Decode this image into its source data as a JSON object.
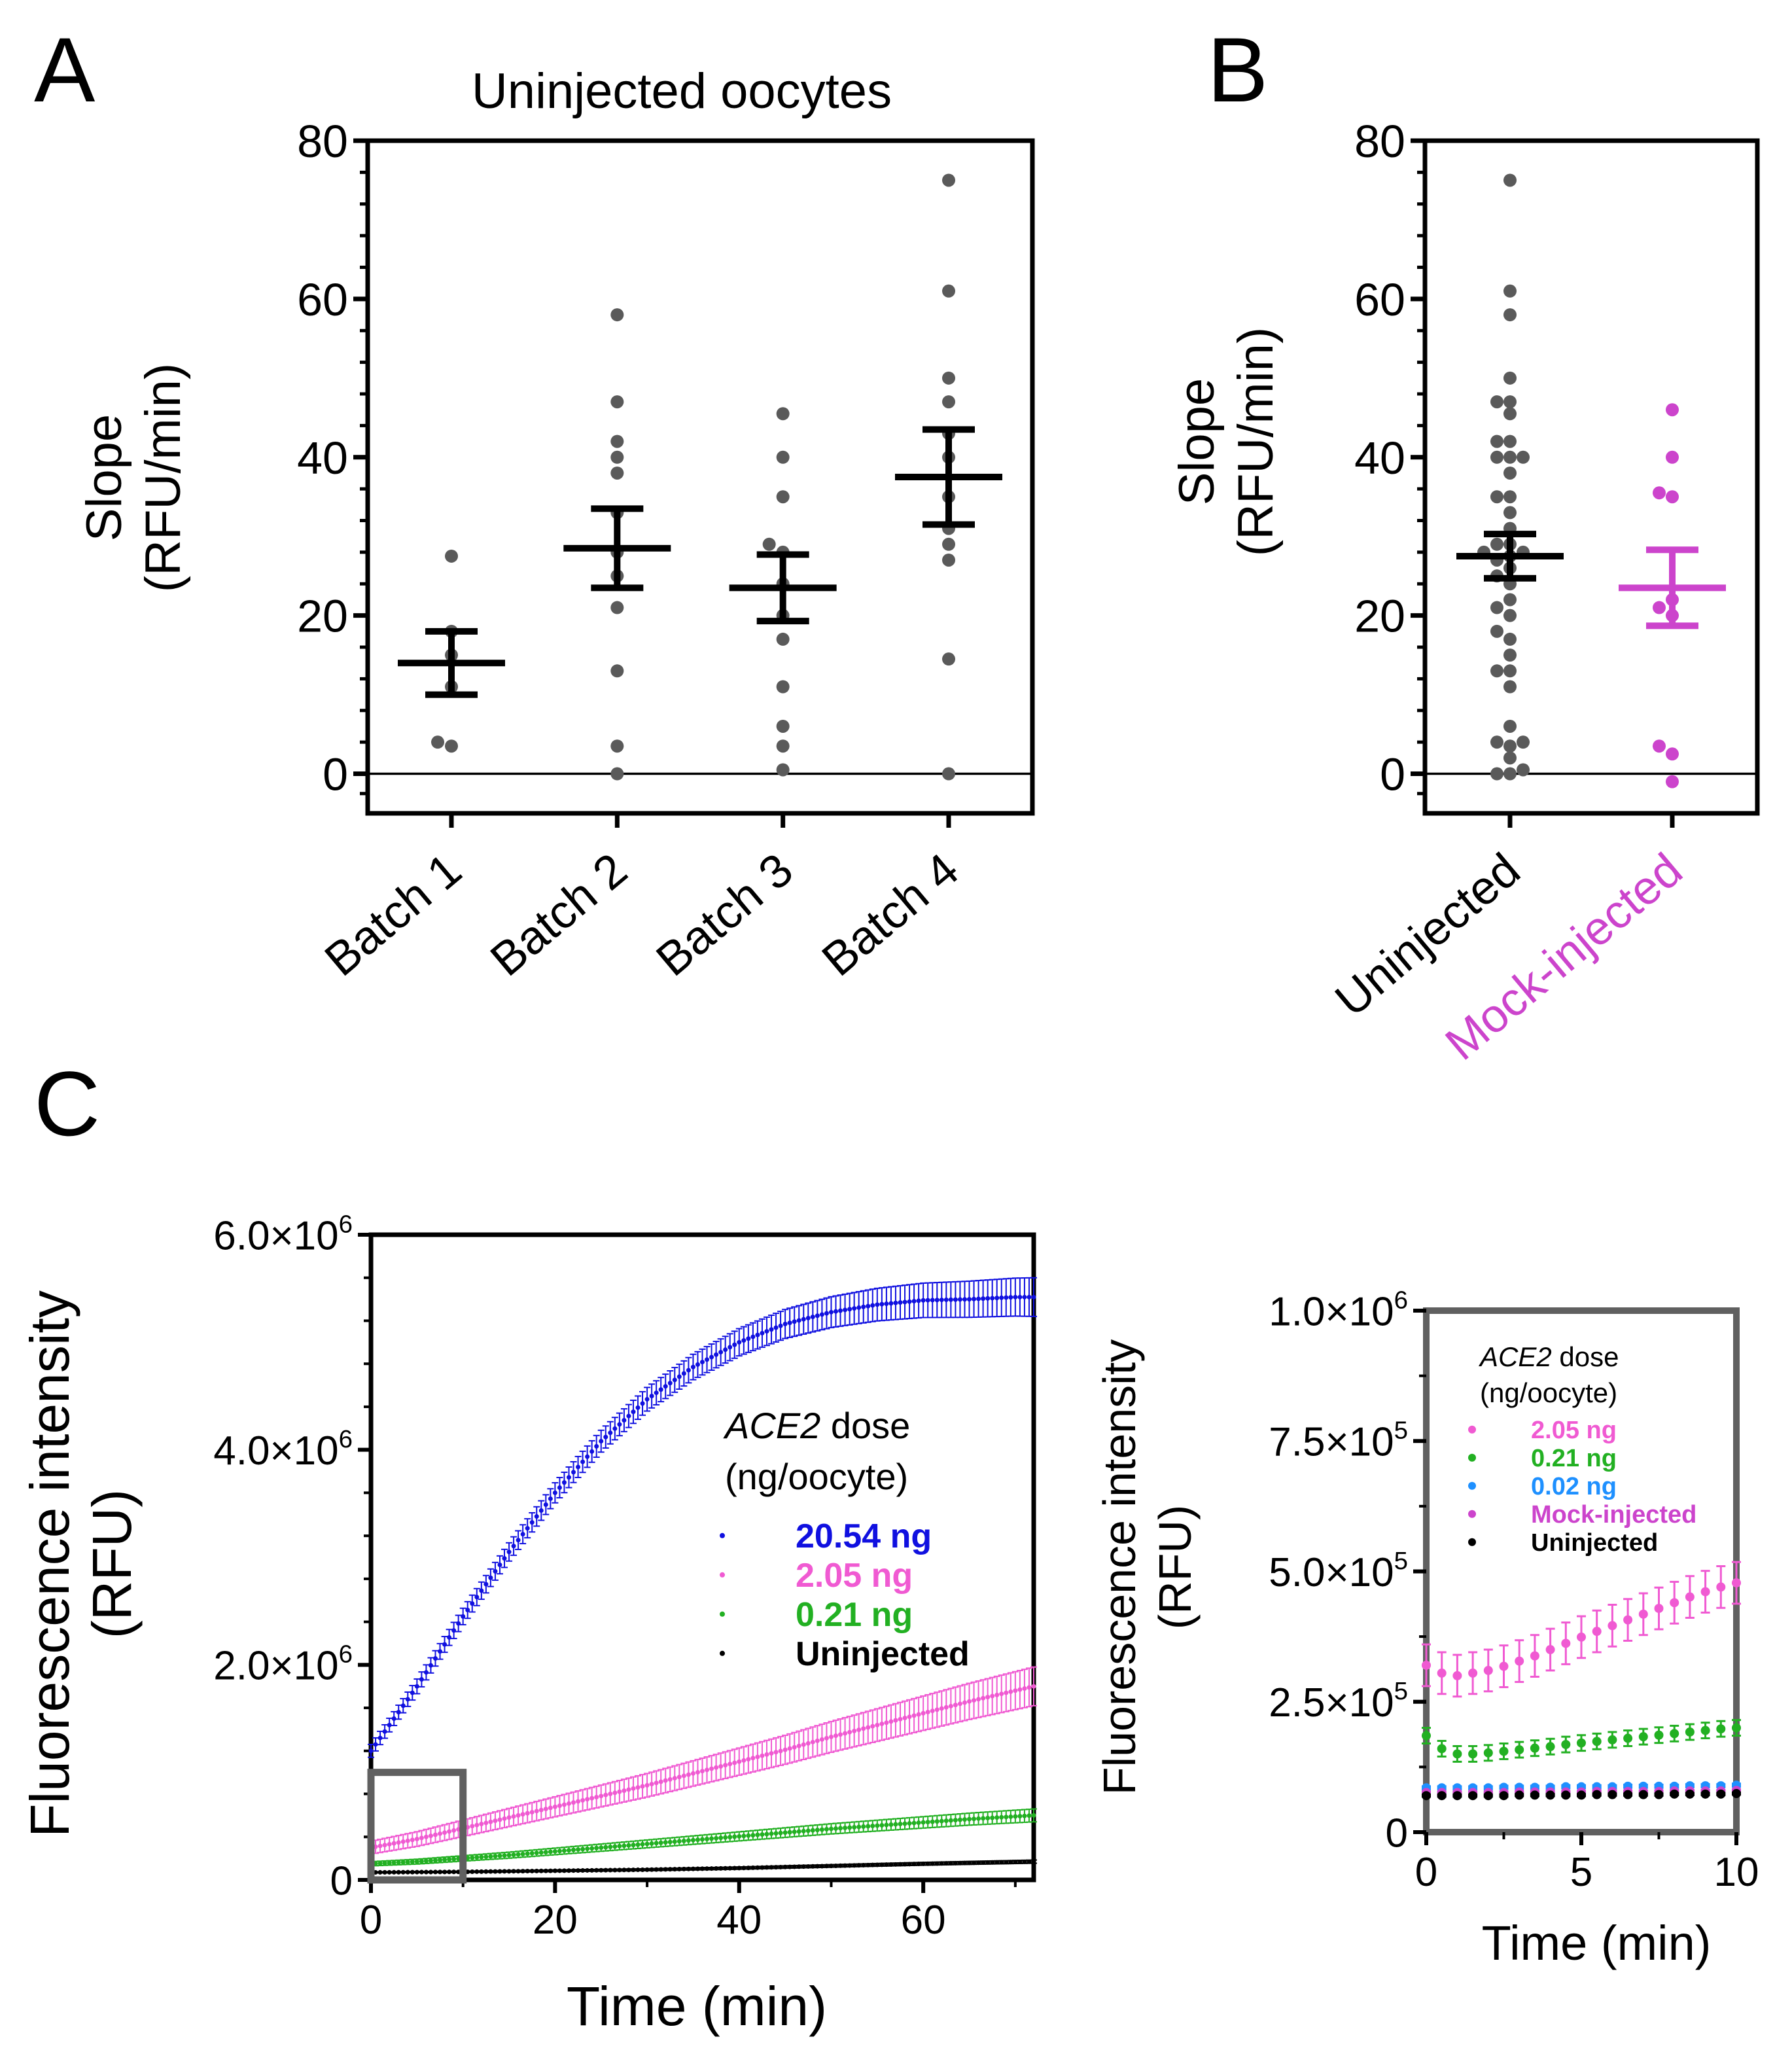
{
  "panel_labels": {
    "a": "A",
    "b": "B",
    "c": "C"
  },
  "colors": {
    "axis": "#000000",
    "dots": "#5a5a5a",
    "mock": "#cc44cc",
    "blue": "#1010e0",
    "pink": "#f05ad2",
    "green": "#22b022",
    "lightblue": "#1e90ff",
    "black": "#000000",
    "zoom_box": "#606060"
  },
  "chart_data": [
    {
      "id": "A",
      "type": "scatter",
      "title": "Uninjected oocytes",
      "ylabel_line1": "Slope",
      "ylabel_line2": "(RFU/min)",
      "ylim": [
        -5,
        80
      ],
      "yticks": [
        0,
        20,
        40,
        60,
        80
      ],
      "yticks_text": [
        "0",
        "20",
        "40",
        "60",
        "80"
      ],
      "categories": [
        "Batch 1",
        "Batch 2",
        "Batch 3",
        "Batch 4"
      ],
      "points": [
        [
          3.5,
          4,
          11,
          15,
          18,
          27.5
        ],
        [
          0,
          3.5,
          13,
          21,
          25,
          28,
          33,
          38,
          40,
          42,
          47,
          58
        ],
        [
          0.5,
          3.5,
          6,
          11,
          17,
          20,
          24,
          28,
          29,
          35,
          40,
          45.5
        ],
        [
          0,
          14.5,
          27,
          29,
          31,
          35,
          40,
          43,
          47,
          50,
          61,
          75
        ]
      ],
      "mean": [
        14,
        28.5,
        23.5,
        37.5
      ],
      "sem": [
        4,
        5,
        4.2,
        6
      ]
    },
    {
      "id": "B",
      "type": "scatter",
      "ylabel_line1": "Slope",
      "ylabel_line2": "(RFU/min)",
      "ylim": [
        -5,
        80
      ],
      "yticks": [
        0,
        20,
        40,
        60,
        80
      ],
      "yticks_text": [
        "0",
        "20",
        "40",
        "60",
        "80"
      ],
      "categories": [
        "Uninjected",
        "Mock-injected"
      ],
      "points": [
        [
          0,
          0,
          0.5,
          2,
          3.5,
          4,
          4,
          6,
          11,
          13,
          13,
          15,
          17,
          18,
          20,
          21,
          22,
          24,
          25,
          26,
          27,
          27.5,
          28,
          28,
          29,
          29,
          31,
          33,
          35,
          35,
          38,
          40,
          40,
          40,
          42,
          42,
          45.5,
          47,
          47,
          50,
          58,
          61,
          75
        ],
        [
          -1,
          2.5,
          3.5,
          20,
          21,
          22,
          35,
          35.5,
          40,
          46
        ]
      ],
      "mean": [
        27.5,
        23.5
      ],
      "sem": [
        2.8,
        4.8
      ]
    },
    {
      "id": "C",
      "type": "line",
      "xlabel": "Time (min)",
      "ylabel_line1": "Fluorescence intensity",
      "ylabel_line2": "(RFU)",
      "xlim": [
        0,
        72
      ],
      "ylim": [
        0,
        6000000
      ],
      "xticks": [
        0,
        20,
        40,
        60
      ],
      "xticks_text": [
        "0",
        "20",
        "40",
        "60"
      ],
      "yticks": [
        0,
        2000000,
        4000000,
        6000000
      ],
      "ytick_labels": [
        {
          "mant": "0",
          "times": "",
          "base": "",
          "exp": ""
        },
        {
          "mant": "2.0",
          "times": "×",
          "base": "10",
          "exp": "6"
        },
        {
          "mant": "4.0",
          "times": "×",
          "base": "10",
          "exp": "6"
        },
        {
          "mant": "6.0",
          "times": "×",
          "base": "10",
          "exp": "6"
        }
      ],
      "legend_title_italic": "ACE2",
      "legend_title_rest": " dose",
      "legend_title_line2": "(ng/oocyte)",
      "series": [
        {
          "name": "20.54 ng",
          "color_key": "blue",
          "x": [
            0,
            5,
            10,
            15,
            20,
            25,
            30,
            35,
            40,
            45,
            50,
            55,
            60,
            65,
            70,
            72
          ],
          "values": [
            1200000,
            1800000,
            2450000,
            3050000,
            3600000,
            4080000,
            4470000,
            4770000,
            5000000,
            5170000,
            5280000,
            5350000,
            5390000,
            5400000,
            5420000,
            5420000
          ],
          "err": 120000
        },
        {
          "name": "2.05 ng",
          "color_key": "pink",
          "x": [
            0,
            5,
            10,
            15,
            20,
            25,
            30,
            35,
            40,
            45,
            50,
            55,
            60,
            65,
            70,
            72
          ],
          "values": [
            300000,
            380000,
            480000,
            580000,
            680000,
            780000,
            880000,
            990000,
            1100000,
            1210000,
            1330000,
            1440000,
            1550000,
            1660000,
            1760000,
            1800000
          ],
          "err": 120000
        },
        {
          "name": "0.21 ng",
          "color_key": "green",
          "x": [
            0,
            5,
            10,
            15,
            20,
            25,
            30,
            35,
            40,
            45,
            50,
            55,
            60,
            65,
            70,
            72
          ],
          "values": [
            150000,
            170000,
            200000,
            230000,
            265000,
            300000,
            335000,
            370000,
            405000,
            440000,
            475000,
            505000,
            535000,
            565000,
            590000,
            600000
          ],
          "err": 40000
        },
        {
          "name": "Uninjected",
          "color_key": "black",
          "x": [
            0,
            10,
            20,
            30,
            40,
            50,
            60,
            72
          ],
          "values": [
            70000,
            75000,
            85000,
            95000,
            110000,
            130000,
            150000,
            170000
          ],
          "err": 10000
        }
      ]
    },
    {
      "id": "C-inset",
      "type": "scatter",
      "xlabel": "Time (min)",
      "ylabel_line1": "Fluorescence intensity",
      "ylabel_line2": "(RFU)",
      "xlim": [
        0,
        10
      ],
      "ylim": [
        0,
        1000000
      ],
      "xticks": [
        0,
        5,
        10
      ],
      "xticks_text": [
        "0",
        "5",
        "10"
      ],
      "yticks": [
        0,
        250000,
        500000,
        750000,
        1000000
      ],
      "ytick_labels": [
        {
          "mant": "0",
          "times": "",
          "base": "",
          "exp": ""
        },
        {
          "mant": "2.5",
          "times": "×",
          "base": "10",
          "exp": "5"
        },
        {
          "mant": "5.0",
          "times": "×",
          "base": "10",
          "exp": "5"
        },
        {
          "mant": "7.5",
          "times": "×",
          "base": "10",
          "exp": "5"
        },
        {
          "mant": "1.0",
          "times": "×",
          "base": "10",
          "exp": "6"
        }
      ],
      "legend_title_italic": "ACE2",
      "legend_title_rest": " dose",
      "legend_title_line2": "(ng/oocyte)",
      "series": [
        {
          "name": "2.05 ng",
          "color_key": "pink",
          "x": [
            0,
            0.5,
            1,
            1.5,
            2,
            2.5,
            3,
            3.5,
            4,
            4.5,
            5,
            5.5,
            6,
            6.5,
            7,
            7.5,
            8,
            8.5,
            9,
            9.5,
            10
          ],
          "values": [
            320000,
            305000,
            300000,
            305000,
            310000,
            318000,
            328000,
            338000,
            350000,
            362000,
            374000,
            385000,
            396000,
            407000,
            418000,
            429000,
            440000,
            451000,
            461000,
            470000,
            478000
          ],
          "err": 40000
        },
        {
          "name": "0.21 ng",
          "color_key": "green",
          "x": [
            0,
            0.5,
            1,
            1.5,
            2,
            2.5,
            3,
            3.5,
            4,
            4.5,
            5,
            5.5,
            6,
            6.5,
            7,
            7.5,
            8,
            8.5,
            9,
            9.5,
            10
          ],
          "values": [
            185000,
            160000,
            150000,
            150000,
            152000,
            155000,
            158000,
            161000,
            164000,
            168000,
            171000,
            174000,
            177000,
            180000,
            183000,
            186000,
            189000,
            192000,
            195000,
            198000,
            200000
          ],
          "err": 15000
        },
        {
          "name": "0.02 ng",
          "color_key": "lightblue",
          "x": [
            0,
            0.5,
            1,
            1.5,
            2,
            2.5,
            3,
            3.5,
            4,
            4.5,
            5,
            5.5,
            6,
            6.5,
            7,
            7.5,
            8,
            8.5,
            9,
            9.5,
            10
          ],
          "values": [
            85000,
            85000,
            85000,
            85000,
            85000,
            86000,
            86000,
            86000,
            86000,
            87000,
            87000,
            87000,
            87000,
            88000,
            88000,
            88000,
            88000,
            89000,
            89000,
            89000,
            90000
          ],
          "err": 3000
        },
        {
          "name": "Mock-injected",
          "color_key": "mock",
          "x": [
            0,
            0.5,
            1,
            1.5,
            2,
            2.5,
            3,
            3.5,
            4,
            4.5,
            5,
            5.5,
            6,
            6.5,
            7,
            7.5,
            8,
            8.5,
            9,
            9.5,
            10
          ],
          "values": [
            76000,
            76000,
            76000,
            76000,
            76000,
            76000,
            77000,
            77000,
            77000,
            77000,
            77000,
            78000,
            78000,
            78000,
            78000,
            78000,
            79000,
            79000,
            79000,
            79000,
            80000
          ],
          "err": 2000
        },
        {
          "name": "Uninjected",
          "color_key": "black",
          "x": [
            0,
            0.5,
            1,
            1.5,
            2,
            2.5,
            3,
            3.5,
            4,
            4.5,
            5,
            5.5,
            6,
            6.5,
            7,
            7.5,
            8,
            8.5,
            9,
            9.5,
            10
          ],
          "values": [
            70000,
            70000,
            70000,
            70000,
            70000,
            70000,
            71000,
            71000,
            71000,
            71000,
            71000,
            72000,
            72000,
            72000,
            72000,
            72000,
            73000,
            73000,
            73000,
            73000,
            74000
          ],
          "err": 2000
        }
      ]
    }
  ]
}
